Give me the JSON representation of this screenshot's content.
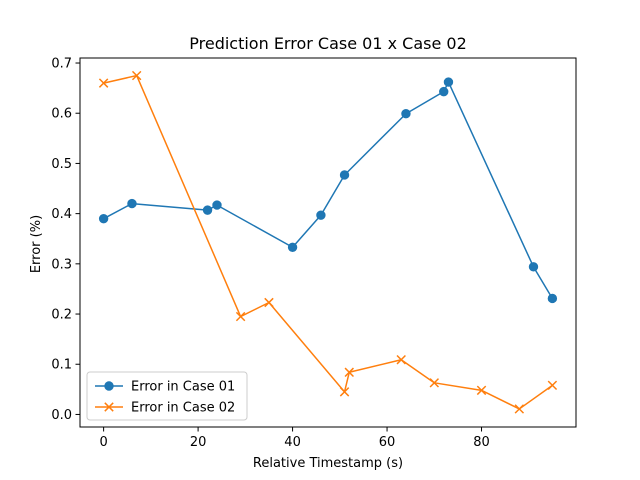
{
  "chart_data": {
    "type": "line",
    "title": "Prediction Error Case 01 x Case 02",
    "xlabel": "Relative Timestamp (s)",
    "ylabel": "Error (%)",
    "xlim": [
      -5,
      100
    ],
    "ylim": [
      -0.025,
      0.71
    ],
    "xticks": [
      0,
      20,
      40,
      60,
      80
    ],
    "yticks": [
      0.0,
      0.1,
      0.2,
      0.3,
      0.4,
      0.5,
      0.6,
      0.7
    ],
    "grid": false,
    "legend_position": "lower-left",
    "series": [
      {
        "name": "Error in Case 01",
        "color": "#1f77b4",
        "marker": "circle",
        "x": [
          0,
          6,
          22,
          24,
          40,
          46,
          51,
          64,
          72,
          73,
          91,
          95
        ],
        "y": [
          0.39,
          0.42,
          0.407,
          0.417,
          0.333,
          0.397,
          0.477,
          0.599,
          0.643,
          0.662,
          0.294,
          0.231
        ]
      },
      {
        "name": "Error in Case 02",
        "color": "#ff7f0e",
        "marker": "x",
        "x": [
          0,
          7,
          29,
          35,
          51,
          52,
          63,
          70,
          80,
          88,
          95
        ],
        "y": [
          0.66,
          0.675,
          0.195,
          0.223,
          0.045,
          0.084,
          0.109,
          0.063,
          0.048,
          0.011,
          0.058
        ]
      }
    ]
  }
}
